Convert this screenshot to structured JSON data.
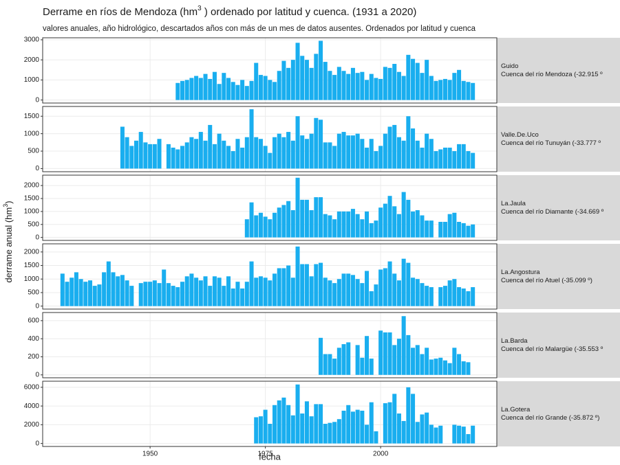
{
  "chart_data": {
    "type": "bar",
    "title": "Derrame en ríos de Mendoza (hm",
    "title_sup": "3",
    "title_end": " )  ordenado por latitud y cuenca.  (1931 a 2020)",
    "subtitle": "valores anuales, año hidrológico, descartados años con más de un mes de datos ausentes. Ordenados por latitud y cuenca",
    "x_label": "fecha",
    "y_label": "derrame anual (hm",
    "y_label_sup": "3",
    "y_label_end": ")",
    "color": "#19aeef",
    "grid": true,
    "xlim": [
      1926.7,
      2025.2
    ],
    "xticks": [
      1950,
      1975,
      2000
    ],
    "panels": [
      {
        "name": "Guido",
        "subtitle": "Cuenca del río Mendoza (-32.915 º",
        "ylim": [
          -150,
          3100
        ],
        "yticks": [
          0,
          1000,
          2000,
          3000
        ],
        "start": 1956,
        "values": [
          850,
          950,
          1000,
          1100,
          1200,
          1100,
          1300,
          1050,
          1400,
          800,
          1350,
          1100,
          900,
          750,
          1000,
          700,
          950,
          1850,
          1250,
          1200,
          1000,
          900,
          1450,
          1950,
          1600,
          2000,
          2850,
          2200,
          2000,
          1600,
          2300,
          2950,
          1900,
          1450,
          1250,
          1650,
          1450,
          1300,
          1600,
          1350,
          1400,
          1000,
          1300,
          1100,
          1050,
          1650,
          1600,
          1800,
          1400,
          1200,
          2250,
          2050,
          1850,
          1350,
          2000,
          1200,
          950,
          1000,
          1050,
          1000,
          1350,
          1500,
          950,
          900,
          850
        ]
      },
      {
        "name": "Valle.De.Uco",
        "subtitle": "Cuenca del río Tunuyán (-33.777 º",
        "ylim": [
          -90,
          1780
        ],
        "yticks": [
          0,
          500,
          1000,
          1500
        ],
        "start": 1944,
        "values": [
          1200,
          900,
          650,
          800,
          1050,
          750,
          700,
          700,
          850,
          null,
          700,
          600,
          550,
          650,
          750,
          900,
          850,
          1050,
          800,
          1250,
          700,
          1000,
          800,
          650,
          500,
          850,
          600,
          900,
          1700,
          900,
          850,
          650,
          450,
          900,
          1000,
          900,
          1050,
          800,
          1500,
          950,
          850,
          1000,
          1450,
          1400,
          750,
          750,
          650,
          1000,
          1050,
          950,
          950,
          1000,
          850,
          600,
          850,
          500,
          650,
          1000,
          1200,
          1250,
          900,
          800,
          1500,
          1150,
          800,
          600,
          1000,
          850,
          500,
          550,
          600,
          600,
          500,
          700,
          700,
          500,
          450
        ]
      },
      {
        "name": "La.Jaula",
        "subtitle": "Cuenca del río Diamante (-34.669 º",
        "ylim": [
          -115,
          2400
        ],
        "yticks": [
          0,
          500,
          1000,
          1500,
          2000
        ],
        "start": 1971,
        "values": [
          700,
          1350,
          850,
          950,
          800,
          700,
          950,
          1150,
          1250,
          1400,
          1050,
          2300,
          1450,
          1450,
          1050,
          1550,
          1550,
          900,
          850,
          700,
          1000,
          1000,
          1000,
          1100,
          900,
          700,
          1000,
          550,
          650,
          1150,
          1300,
          1600,
          1200,
          900,
          1750,
          1450,
          1000,
          1050,
          850,
          650,
          650,
          null,
          600,
          600,
          900,
          950,
          600,
          550,
          450,
          500
        ]
      },
      {
        "name": "La.Angostura",
        "subtitle": "Cuenca del río Atuel (-35.099 º)",
        "ylim": [
          -110,
          2300
        ],
        "yticks": [
          0,
          500,
          1000,
          1500,
          2000
        ],
        "start": 1931,
        "values": [
          1200,
          900,
          1050,
          1250,
          1000,
          900,
          950,
          750,
          800,
          1250,
          1650,
          1250,
          1100,
          1150,
          950,
          750,
          null,
          850,
          900,
          900,
          950,
          850,
          1350,
          850,
          750,
          700,
          900,
          1100,
          1200,
          1050,
          950,
          1100,
          750,
          1100,
          1050,
          750,
          1100,
          650,
          900,
          650,
          900,
          1650,
          1050,
          1100,
          1050,
          950,
          1200,
          1400,
          1400,
          1500,
          1050,
          2200,
          1550,
          1550,
          1100,
          1550,
          1600,
          1050,
          950,
          850,
          1000,
          1200,
          1200,
          1150,
          1000,
          850,
          1300,
          550,
          800,
          1350,
          1400,
          1650,
          1200,
          950,
          1750,
          1600,
          1050,
          1000,
          850,
          750,
          700,
          null,
          700,
          750,
          950,
          1000,
          700,
          650,
          550,
          700
        ]
      },
      {
        "name": "La.Barda",
        "subtitle": "Cuenca del río Malargüe (-35.553 º",
        "ylim": [
          -32,
          690
        ],
        "yticks": [
          0,
          200,
          400,
          600
        ],
        "start": 1987,
        "values": [
          410,
          230,
          230,
          180,
          300,
          340,
          360,
          null,
          330,
          190,
          430,
          180,
          null,
          490,
          470,
          470,
          330,
          400,
          650,
          440,
          300,
          330,
          230,
          300,
          170,
          180,
          190,
          160,
          130,
          300,
          230,
          150,
          140
        ]
      },
      {
        "name": "La.Gotera",
        "subtitle": "Cuenca del río Grande (-35.872 º)",
        "ylim": [
          -320,
          6650
        ],
        "yticks": [
          0,
          2000,
          4000,
          6000
        ],
        "start": 1973,
        "values": [
          2800,
          2900,
          3600,
          2100,
          4100,
          4600,
          4900,
          4100,
          3000,
          6300,
          3200,
          4500,
          2900,
          4200,
          4200,
          2100,
          2200,
          2300,
          2600,
          3500,
          4100,
          3400,
          3600,
          3500,
          2000,
          4400,
          1300,
          null,
          4300,
          4400,
          5300,
          3200,
          2400,
          6000,
          5300,
          2300,
          3100,
          3300,
          2000,
          1700,
          1900,
          null,
          null,
          2000,
          1900,
          1800,
          1000,
          1900
        ]
      }
    ]
  }
}
